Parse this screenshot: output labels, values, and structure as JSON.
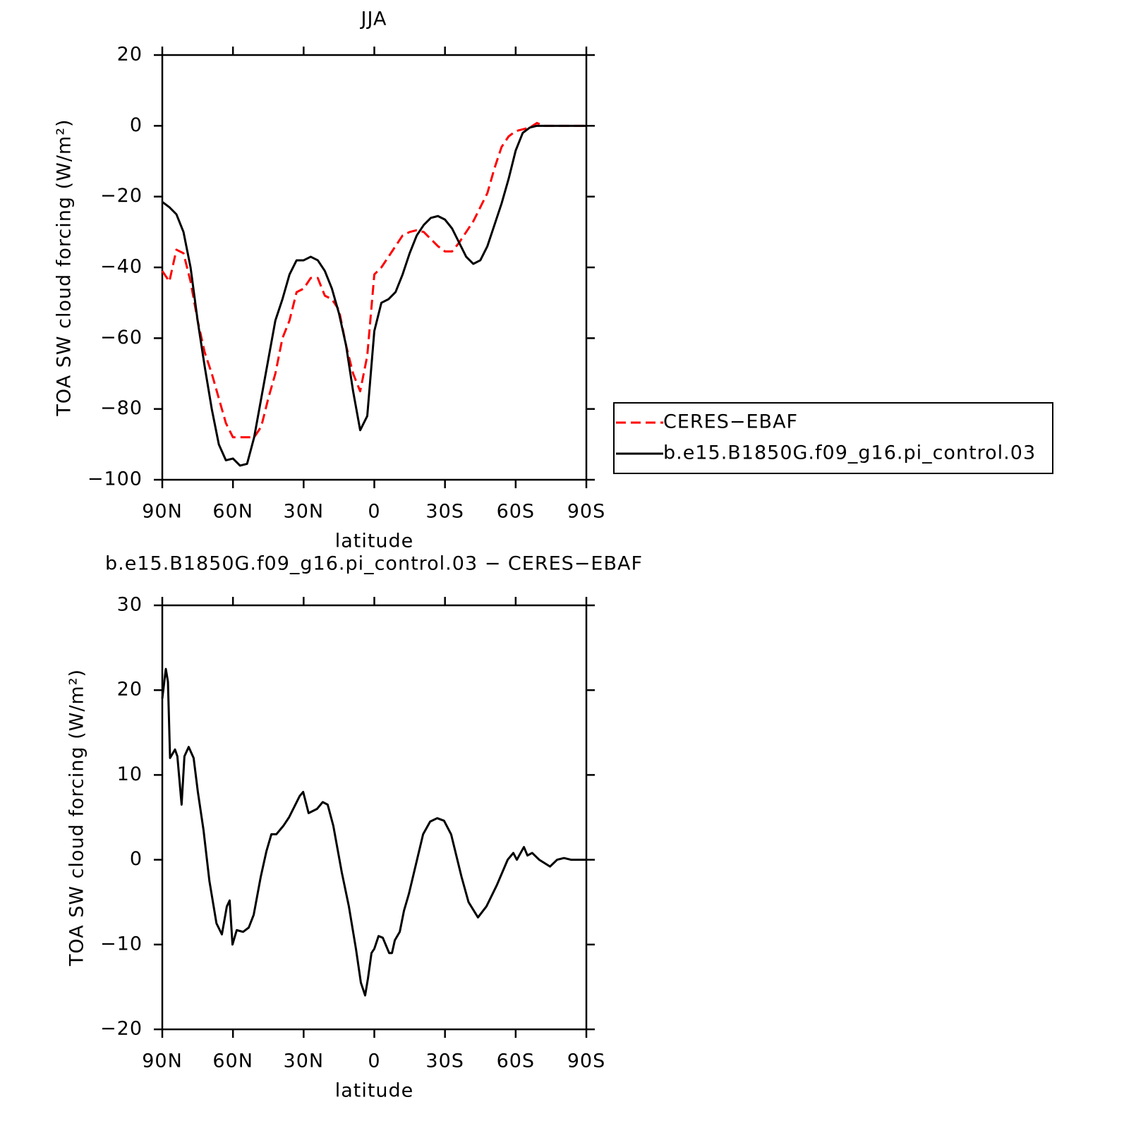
{
  "chart_data": [
    {
      "type": "line",
      "title": "JJA",
      "xlabel": "latitude",
      "ylabel": "TOA SW cloud forcing (W/m²)",
      "xlim": [
        90,
        -90
      ],
      "xticks": [
        {
          "value": 90,
          "label": "90N"
        },
        {
          "value": 60,
          "label": "60N"
        },
        {
          "value": 30,
          "label": "30N"
        },
        0,
        {
          "value": -30,
          "label": "30S"
        },
        {
          "value": -60,
          "label": "60S"
        },
        {
          "value": -90,
          "label": "90S"
        }
      ],
      "ylim": [
        -100,
        20
      ],
      "yticks": [
        {
          "value": -100,
          "label": "−100"
        },
        {
          "value": -80,
          "label": "−80"
        },
        {
          "value": -60,
          "label": "−60"
        },
        {
          "value": -40,
          "label": "−40"
        },
        {
          "value": -20,
          "label": "−20"
        },
        0,
        20
      ],
      "legend": "right",
      "x": [
        90,
        87,
        84,
        81,
        78,
        75,
        72,
        69,
        66,
        63,
        60,
        57,
        54,
        51,
        48,
        45,
        42,
        39,
        36,
        33,
        30,
        27,
        24,
        21,
        18,
        15,
        12,
        9,
        6,
        3,
        0,
        -3,
        -6,
        -9,
        -12,
        -15,
        -18,
        -21,
        -24,
        -27,
        -30,
        -33,
        -36,
        -39,
        -42,
        -45,
        -48,
        -51,
        -54,
        -57,
        -60,
        -63,
        -66,
        -69,
        -72,
        -75,
        -78,
        -81,
        -84,
        -87,
        -90
      ],
      "series": [
        {
          "name": "CERES−EBAF",
          "color": "#ff0000",
          "style": "dashed",
          "values": [
            -41,
            -44,
            -35,
            -36,
            -44,
            -55,
            -64,
            -70,
            -77,
            -84,
            -88,
            -88,
            -88,
            -88,
            -85,
            -77,
            -70,
            -60,
            -55,
            -47,
            -46,
            -43,
            -43,
            -48,
            -49,
            -52,
            -62,
            -70,
            -75,
            -65,
            -42,
            -40,
            -37,
            -34,
            -31,
            -30,
            -29.5,
            -30,
            -32,
            -34,
            -35.5,
            -35.5,
            -33,
            -30,
            -27,
            -23,
            -19,
            -12,
            -6,
            -3,
            -1.5,
            -1,
            -0.5,
            0.8,
            0,
            0,
            0,
            0,
            0,
            0,
            0
          ]
        },
        {
          "name": "b.e15.B1850G.f09_g16.pi_control.03",
          "color": "#000000",
          "style": "solid",
          "values": [
            -21.5,
            -23,
            -25,
            -30,
            -40,
            -55,
            -68,
            -80,
            -90,
            -94.5,
            -94,
            -96,
            -95.5,
            -88,
            -77,
            -66,
            -55,
            -49,
            -42,
            -38,
            -38,
            -37,
            -38,
            -41,
            -46,
            -53,
            -62,
            -75,
            -86,
            -82,
            -58,
            -50,
            -49,
            -47,
            -42,
            -36,
            -31,
            -28,
            -26,
            -25.5,
            -26.5,
            -29,
            -33,
            -37,
            -39,
            -38,
            -34,
            -28,
            -22,
            -15,
            -7,
            -2,
            -0.5,
            0,
            0,
            0,
            0,
            0,
            0,
            0,
            0
          ]
        }
      ]
    },
    {
      "type": "line",
      "title": "b.e15.B1850G.f09_g16.pi_control.03 − CERES−EBAF",
      "xlabel": "latitude",
      "ylabel": "TOA SW cloud forcing (W/m²)",
      "xlim": [
        90,
        -90
      ],
      "xticks": [
        {
          "value": 90,
          "label": "90N"
        },
        {
          "value": 60,
          "label": "60N"
        },
        {
          "value": 30,
          "label": "30N"
        },
        0,
        {
          "value": -30,
          "label": "30S"
        },
        {
          "value": -60,
          "label": "60S"
        },
        {
          "value": -90,
          "label": "90S"
        }
      ],
      "ylim": [
        -20,
        30
      ],
      "yticks": [
        {
          "value": -20,
          "label": "−20"
        },
        {
          "value": -10,
          "label": "−10"
        },
        0,
        10,
        20,
        30
      ],
      "color": "#000000",
      "x": [
        90,
        88.5,
        87.6,
        86.7,
        84.6,
        83.6,
        81.8,
        80.6,
        78.8,
        76.7,
        74.9,
        72.5,
        70,
        67,
        64.7,
        62.6,
        61.4,
        60.2,
        58.4,
        55.7,
        53.3,
        51.2,
        48.2,
        45.8,
        43.7,
        41.6,
        38.6,
        36.2,
        31.7,
        30.2,
        27.9,
        24.3,
        21.9,
        19.8,
        17.4,
        13.8,
        10.8,
        7.8,
        5.7,
        3.9,
        2.7,
        1.2,
        0,
        -1.8,
        -3.6,
        -4.8,
        -6.3,
        -7.5,
        -8.7,
        -10.8,
        -12.6,
        -14.7,
        -17.7,
        -20.7,
        -23.7,
        -26.7,
        -29.6,
        -32.6,
        -37,
        -40,
        -44,
        -47.6,
        -52,
        -56.6,
        -59,
        -60.5,
        -63.5,
        -65,
        -67,
        -70,
        -74.6,
        -77.6,
        -80.5,
        -83.5,
        -90
      ],
      "values": [
        19,
        22.5,
        21,
        12,
        13,
        12.2,
        6.5,
        12.2,
        13.3,
        12,
        8,
        3.5,
        -2.5,
        -7.5,
        -8.8,
        -5.5,
        -4.8,
        -10,
        -8.3,
        -8.5,
        -8,
        -6.5,
        -2,
        1,
        3,
        3,
        4,
        5,
        7.5,
        8,
        5.5,
        6,
        6.8,
        6.5,
        4,
        -1.5,
        -5.5,
        -10.5,
        -14.5,
        -16,
        -14,
        -11,
        -10.5,
        -9,
        -9.2,
        -10,
        -11,
        -11,
        -9.5,
        -8.5,
        -6,
        -4,
        -0.5,
        3,
        4.5,
        4.9,
        4.6,
        3,
        -2,
        -5,
        -6.8,
        -5.5,
        -3,
        0,
        0.8,
        0,
        1.5,
        0.5,
        0.8,
        0,
        -0.8,
        0,
        0.2,
        0,
        0
      ]
    }
  ]
}
